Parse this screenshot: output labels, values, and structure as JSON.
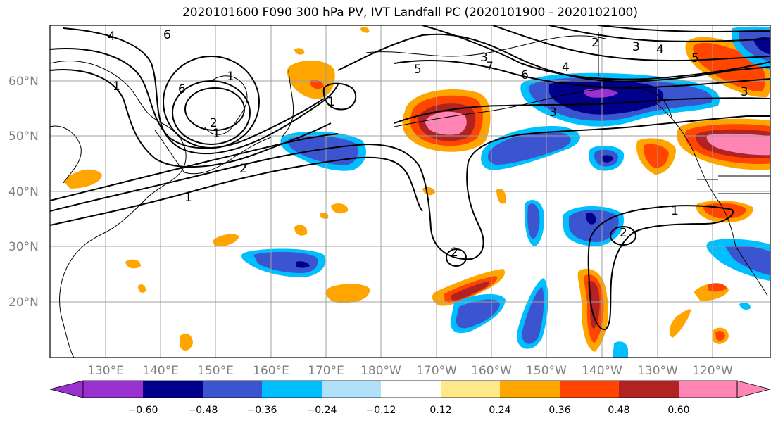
{
  "title": "2020101600 F090 300 hPa PV, IVT Landfall PC (2020101900 - 2020102100)",
  "lat_labels": [
    "60°N",
    "50°N",
    "40°N",
    "30°N",
    "20°N"
  ],
  "lon_labels": [
    "130°E",
    "140°E",
    "150°E",
    "160°E",
    "170°E",
    "180°W",
    "170°W",
    "160°W",
    "150°W",
    "140°W",
    "130°W",
    "120°W"
  ],
  "contour_labels": [
    "4",
    "6",
    "1",
    "6",
    "1",
    "2",
    "1",
    "1",
    "2",
    "1",
    "3",
    "5",
    "3",
    "6",
    "4",
    "7",
    "5",
    "3",
    "1",
    "2",
    "2",
    "2",
    "4",
    "3"
  ],
  "colorbar": {
    "ticks": [
      "−0.60",
      "−0.48",
      "−0.36",
      "−0.24",
      "−0.12",
      "0.12",
      "0.24",
      "0.36",
      "0.48",
      "0.60"
    ],
    "colors": [
      "#9b30d0",
      "#00008b",
      "#3a55cf",
      "#00bfff",
      "#b0e0fa",
      "#ffffff",
      "#fee98a",
      "#ffa500",
      "#ff4500",
      "#b22222",
      "#ff85b4",
      "#ff85b4"
    ]
  }
}
